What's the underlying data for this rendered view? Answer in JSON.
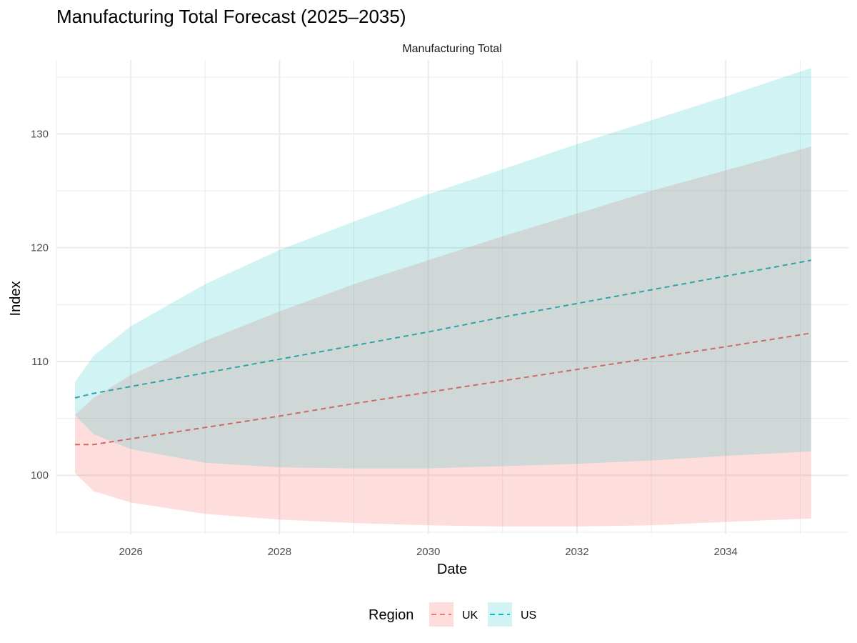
{
  "chart_data": {
    "type": "line",
    "title": "Manufacturing Total Forecast (2025–2035)",
    "facet_label": "Manufacturing Total",
    "xlabel": "Date",
    "ylabel": "Index",
    "x_ticks": [
      "2026",
      "2028",
      "2030",
      "2032",
      "2034"
    ],
    "y_ticks": [
      "100",
      "110",
      "120",
      "130"
    ],
    "xlim": [
      2025.0,
      2035.65
    ],
    "ylim": [
      94.8,
      136.5
    ],
    "grid": true,
    "legend": {
      "title": "Region",
      "position": "bottom"
    },
    "series": [
      {
        "name": "UK",
        "color": "#F8766D",
        "x": [
          2025.25,
          2025.5,
          2026,
          2027,
          2028,
          2029,
          2030,
          2031,
          2032,
          2033,
          2034,
          2035.15
        ],
        "values": [
          102.7,
          102.7,
          103.2,
          104.2,
          105.2,
          106.3,
          107.3,
          108.3,
          109.3,
          110.3,
          111.3,
          112.5
        ],
        "lower": [
          100.2,
          98.6,
          97.6,
          96.6,
          96.1,
          95.8,
          95.6,
          95.5,
          95.5,
          95.6,
          95.9,
          96.2
        ],
        "upper": [
          105.3,
          106.8,
          108.8,
          111.8,
          114.4,
          116.8,
          118.9,
          121.0,
          123.0,
          125.0,
          126.8,
          128.9
        ]
      },
      {
        "name": "US",
        "color": "#00BFC4",
        "x": [
          2025.25,
          2025.5,
          2026,
          2027,
          2028,
          2029,
          2030,
          2031,
          2032,
          2033,
          2034,
          2035.15
        ],
        "values": [
          106.8,
          107.2,
          107.8,
          109.0,
          110.2,
          111.4,
          112.6,
          113.9,
          115.1,
          116.3,
          117.5,
          118.9
        ],
        "lower": [
          105.3,
          103.6,
          102.3,
          101.1,
          100.7,
          100.6,
          100.6,
          100.8,
          101.0,
          101.3,
          101.7,
          102.1
        ],
        "upper": [
          108.2,
          110.5,
          113.1,
          116.8,
          119.8,
          122.3,
          124.7,
          126.9,
          129.1,
          131.2,
          133.3,
          135.8
        ]
      }
    ]
  }
}
